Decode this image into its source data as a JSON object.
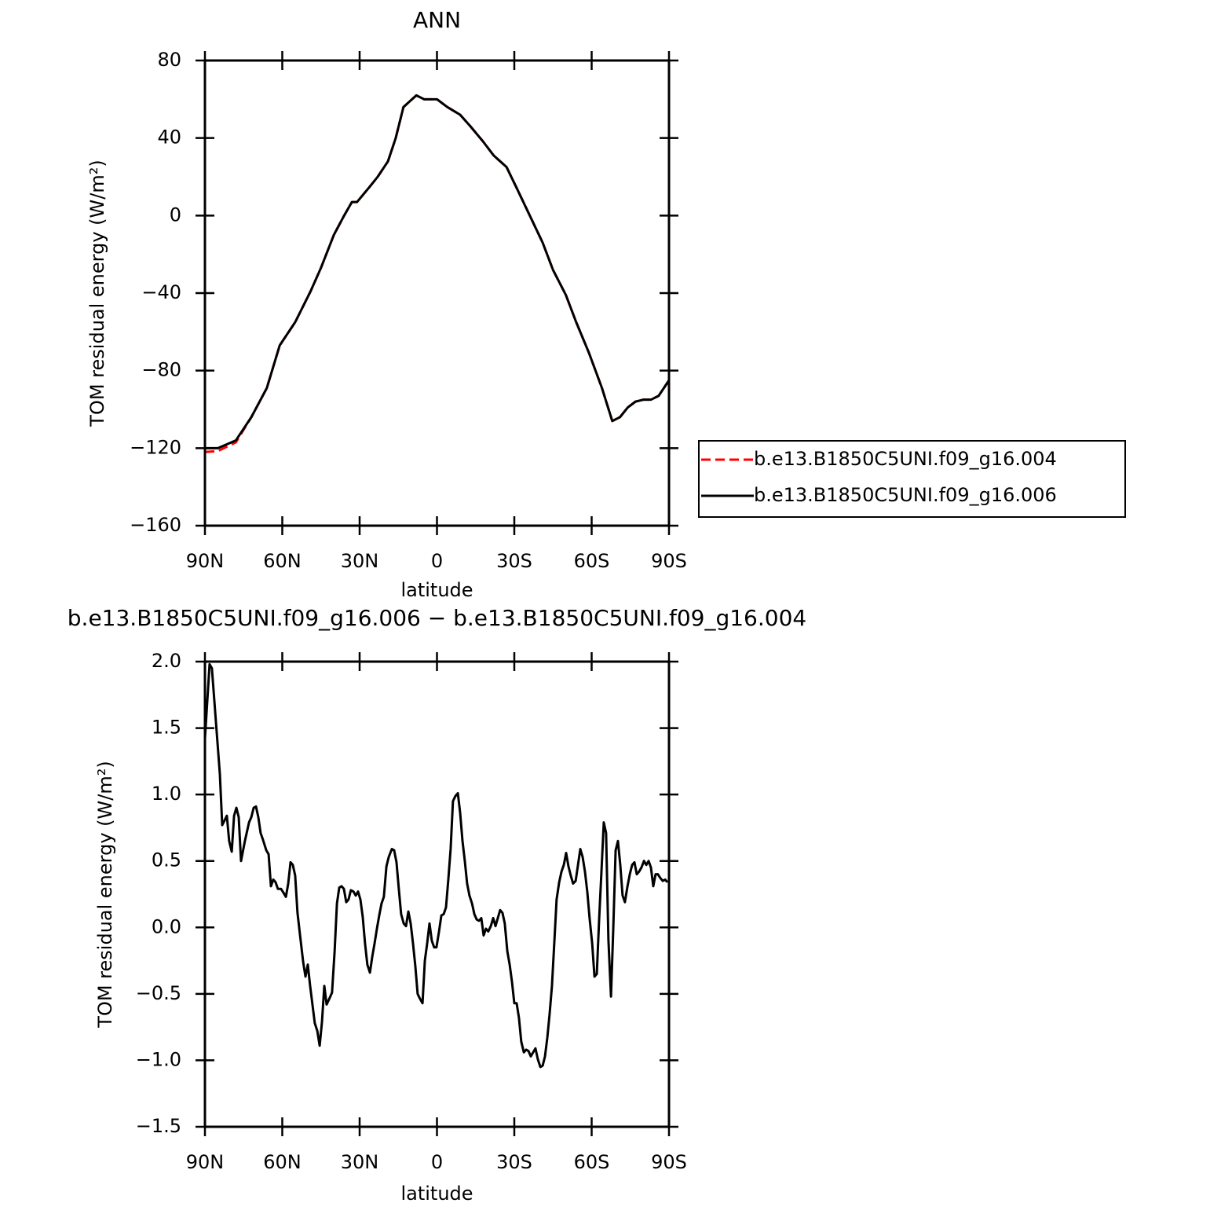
{
  "chart_data": [
    {
      "type": "line",
      "title": "ANN",
      "x_label": "latitude",
      "y_label": "TOM residual energy (W/m²)",
      "x": [
        90,
        85,
        78,
        72,
        66,
        61,
        55,
        49,
        45,
        40,
        36,
        33,
        31,
        26,
        23,
        19,
        16,
        13,
        8,
        5,
        0,
        -4,
        -9,
        -13,
        -18,
        -22,
        -27,
        -31,
        -36,
        -41,
        -45,
        -50,
        -54,
        -59,
        -64,
        -68,
        -71,
        -74,
        -77,
        -80,
        -83,
        -86,
        -88,
        -90
      ],
      "series": [
        {
          "name": "b.e13.B1850C5UNI.f09_g16.004",
          "color": "#ff0000",
          "dash": "dashed",
          "values": [
            -122,
            -121.5,
            -117,
            -104,
            -89,
            -67,
            -55,
            -39,
            -27,
            -10,
            0,
            7,
            7,
            15,
            20,
            28,
            40,
            56,
            62,
            60,
            60,
            56,
            52,
            46,
            38,
            31,
            25,
            14,
            0,
            -14,
            -28,
            -41,
            -55,
            -71,
            -89,
            -106,
            -104,
            -99,
            -96,
            -95,
            -95,
            -93,
            -89,
            -85
          ]
        },
        {
          "name": "b.e13.B1850C5UNI.f09_g16.006",
          "color": "#000000",
          "values": [
            -120,
            -120,
            -116,
            -104,
            -89,
            -67,
            -55,
            -39,
            -27,
            -10,
            0,
            7,
            7,
            15,
            20,
            28,
            40,
            56,
            62,
            60,
            60,
            56,
            52,
            46,
            38,
            31,
            25,
            14,
            0,
            -14,
            -28,
            -41,
            -55,
            -71,
            -89,
            -106,
            -104,
            -99,
            -96,
            -95,
            -95,
            -93,
            -89,
            -85
          ]
        }
      ],
      "xlim": [
        90,
        -90
      ],
      "xticks": [
        {
          "value": 90,
          "label": "90N"
        },
        {
          "value": 60,
          "label": "60N"
        },
        {
          "value": 30,
          "label": "30N"
        },
        0,
        {
          "value": -30,
          "label": "30S"
        },
        {
          "value": -60,
          "label": "60S"
        },
        {
          "value": -90,
          "label": "90S"
        }
      ],
      "ylim": [
        -160,
        80
      ],
      "yticks": [
        {
          "value": -160,
          "label": "−160"
        },
        {
          "value": -120,
          "label": "−120"
        },
        {
          "value": -80,
          "label": "−80"
        },
        {
          "value": -40,
          "label": "−40"
        },
        0,
        40,
        80
      ],
      "legend": "right"
    },
    {
      "type": "line",
      "title": "b.e13.B1850C5UNI.f09_g16.006 − b.e13.B1850C5UNI.f09_g16.004",
      "x_label": "latitude",
      "y_label": "TOM residual energy (W/m²)",
      "x": [
        90.0,
        88.2,
        87.3,
        84.2,
        83.3,
        81.5,
        80.6,
        79.6,
        78.7,
        77.8,
        76.9,
        76.0,
        74.5,
        72.9,
        72.0,
        71.1,
        70.2,
        69.3,
        68.4,
        67.5,
        66.2,
        65.3,
        64.4,
        63.5,
        62.6,
        61.7,
        60.5,
        59.5,
        58.6,
        57.7,
        56.8,
        55.9,
        55.0,
        54.1,
        53.1,
        51.9,
        51.0,
        50.1,
        49.2,
        48.3,
        47.4,
        46.4,
        45.5,
        44.6,
        43.7,
        42.8,
        41.6,
        40.7,
        39.7,
        38.8,
        37.9,
        37.0,
        36.1,
        35.2,
        34.3,
        33.4,
        32.4,
        31.5,
        30.6,
        29.7,
        28.8,
        27.9,
        27.0,
        26.0,
        25.1,
        24.2,
        23.3,
        22.4,
        21.5,
        20.6,
        19.6,
        18.7,
        17.5,
        16.6,
        15.7,
        14.8,
        13.9,
        12.9,
        12.0,
        11.1,
        10.2,
        9.3,
        8.4,
        7.5,
        6.5,
        5.6,
        4.7,
        3.8,
        2.9,
        2.0,
        1.1,
        0.2,
        -0.8,
        -1.7,
        -2.6,
        -3.5,
        -4.4,
        -5.3,
        -6.2,
        -7.2,
        -8.1,
        -9.0,
        -9.9,
        -10.8,
        -11.7,
        -12.6,
        -13.6,
        -14.5,
        -15.4,
        -16.3,
        -17.2,
        -18.1,
        -19.0,
        -19.9,
        -20.9,
        -21.8,
        -22.7,
        -23.6,
        -24.5,
        -25.4,
        -26.3,
        -27.3,
        -28.2,
        -29.1,
        -30.0,
        -30.9,
        -31.8,
        -32.7,
        -33.7,
        -34.6,
        -35.5,
        -36.4,
        -37.3,
        -38.2,
        -39.1,
        -40.1,
        -41.0,
        -41.9,
        -42.8,
        -43.7,
        -44.6,
        -45.5,
        -46.4,
        -47.4,
        -48.3,
        -49.2,
        -50.1,
        -51.0,
        -51.9,
        -52.8,
        -53.8,
        -54.7,
        -55.6,
        -56.5,
        -57.4,
        -58.3,
        -59.2,
        -60.2,
        -61.1,
        -62.0,
        -62.9,
        -63.8,
        -64.7,
        -65.6,
        -66.5,
        -67.5,
        -68.4,
        -69.3,
        -70.2,
        -71.1,
        -72.0,
        -72.9,
        -73.9,
        -74.8,
        -75.7,
        -76.6,
        -77.5,
        -78.4,
        -79.3,
        -80.3,
        -81.2,
        -82.1,
        -83.0,
        -83.9,
        -84.8,
        -85.7,
        -86.7,
        -87.6,
        -88.5,
        -89.4
      ],
      "values": [
        1.42,
        1.98,
        1.95,
        1.15,
        0.77,
        0.84,
        0.65,
        0.57,
        0.84,
        0.9,
        0.83,
        0.5,
        0.65,
        0.79,
        0.83,
        0.9,
        0.91,
        0.83,
        0.71,
        0.66,
        0.58,
        0.55,
        0.31,
        0.36,
        0.34,
        0.29,
        0.29,
        0.26,
        0.23,
        0.33,
        0.49,
        0.47,
        0.39,
        0.11,
        -0.06,
        -0.26,
        -0.37,
        -0.28,
        -0.44,
        -0.58,
        -0.72,
        -0.78,
        -0.89,
        -0.71,
        -0.44,
        -0.58,
        -0.53,
        -0.49,
        -0.18,
        0.18,
        0.3,
        0.31,
        0.29,
        0.19,
        0.21,
        0.28,
        0.27,
        0.24,
        0.27,
        0.21,
        0.08,
        -0.12,
        -0.28,
        -0.34,
        -0.22,
        -0.12,
        -0.01,
        0.09,
        0.18,
        0.23,
        0.46,
        0.53,
        0.59,
        0.58,
        0.49,
        0.29,
        0.1,
        0.03,
        0.01,
        0.12,
        0.03,
        -0.12,
        -0.29,
        -0.5,
        -0.54,
        -0.57,
        -0.25,
        -0.12,
        0.03,
        -0.1,
        -0.15,
        -0.15,
        -0.03,
        0.09,
        0.1,
        0.15,
        0.36,
        0.59,
        0.95,
        0.99,
        1.01,
        0.86,
        0.65,
        0.5,
        0.33,
        0.24,
        0.18,
        0.1,
        0.06,
        0.05,
        0.07,
        -0.06,
        -0.01,
        -0.03,
        0.01,
        0.07,
        0.01,
        0.07,
        0.13,
        0.11,
        0.03,
        -0.18,
        -0.28,
        -0.41,
        -0.57,
        -0.57,
        -0.68,
        -0.86,
        -0.94,
        -0.92,
        -0.93,
        -0.97,
        -0.94,
        -0.91,
        -0.99,
        -1.05,
        -1.04,
        -0.97,
        -0.83,
        -0.65,
        -0.44,
        -0.12,
        0.21,
        0.34,
        0.42,
        0.47,
        0.56,
        0.46,
        0.39,
        0.33,
        0.35,
        0.47,
        0.59,
        0.53,
        0.42,
        0.27,
        0.07,
        -0.12,
        -0.37,
        -0.35,
        0.06,
        0.42,
        0.79,
        0.71,
        -0.09,
        -0.52,
        0.0,
        0.58,
        0.65,
        0.47,
        0.24,
        0.19,
        0.31,
        0.4,
        0.47,
        0.49,
        0.4,
        0.42,
        0.45,
        0.5,
        0.47,
        0.5,
        0.45,
        0.31,
        0.4,
        0.4,
        0.37,
        0.35,
        0.36,
        0.34
      ],
      "color": "#000000",
      "xlim": [
        90,
        -90
      ],
      "xticks": [
        {
          "value": 90,
          "label": "90N"
        },
        {
          "value": 60,
          "label": "60N"
        },
        {
          "value": 30,
          "label": "30N"
        },
        0,
        {
          "value": -30,
          "label": "30S"
        },
        {
          "value": -60,
          "label": "60S"
        },
        {
          "value": -90,
          "label": "90S"
        }
      ],
      "ylim": [
        -1.5,
        2.0
      ],
      "yticks": [
        {
          "value": -1.5,
          "label": "−1.5"
        },
        {
          "value": -1.0,
          "label": "−1.0"
        },
        {
          "value": -0.5,
          "label": "−0.5"
        },
        {
          "value": 0,
          "label": "0.0"
        },
        {
          "value": 0.5,
          "label": "0.5"
        },
        {
          "value": 1.0,
          "label": "1.0"
        },
        {
          "value": 1.5,
          "label": "1.5"
        },
        {
          "value": 2.0,
          "label": "2.0"
        }
      ]
    }
  ]
}
